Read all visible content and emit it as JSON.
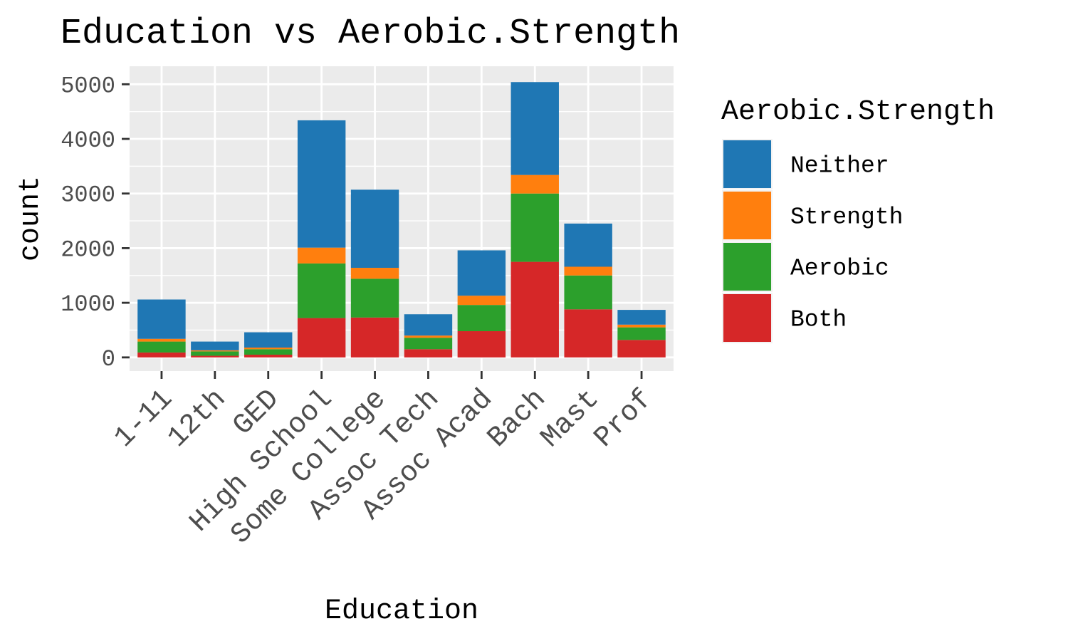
{
  "chart_data": {
    "type": "bar",
    "stacked": true,
    "title": "Education vs Aerobic.Strength",
    "xlabel": "Education",
    "ylabel": "count",
    "categories": [
      "1-11",
      "12th",
      "GED",
      "High School",
      "Some College",
      "Assoc Tech",
      "Assoc Acad",
      "Bach",
      "Mast",
      "Prof"
    ],
    "series": [
      {
        "name": "Both",
        "color": "#d62728",
        "values": [
          90,
          30,
          50,
          720,
          730,
          150,
          480,
          1750,
          880,
          320
        ]
      },
      {
        "name": "Aerobic",
        "color": "#2ca02c",
        "values": [
          200,
          80,
          100,
          1000,
          710,
          210,
          480,
          1250,
          620,
          230
        ]
      },
      {
        "name": "Strength",
        "color": "#ff7f0e",
        "values": [
          50,
          20,
          30,
          290,
          200,
          40,
          170,
          340,
          160,
          50
        ]
      },
      {
        "name": "Neither",
        "color": "#1f77b4",
        "values": [
          720,
          160,
          280,
          2330,
          1430,
          390,
          830,
          1700,
          790,
          270
        ]
      }
    ],
    "ylim": [
      -250,
      5330
    ],
    "yticks": [
      0,
      1000,
      2000,
      3000,
      4000,
      5000
    ],
    "grid": true,
    "legend": {
      "title": "Aerobic.Strength",
      "position": "right",
      "order": [
        "Neither",
        "Strength",
        "Aerobic",
        "Both"
      ]
    }
  }
}
